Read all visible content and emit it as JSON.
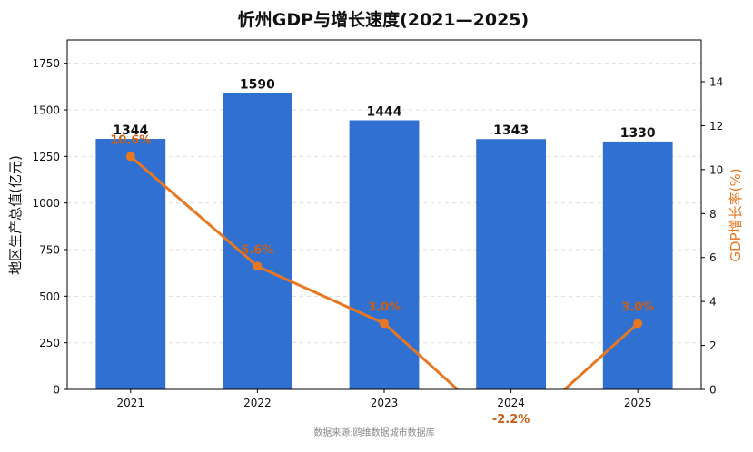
{
  "chart_data": {
    "type": "bar+line",
    "title": "忻州GDP与增长速度(2021—2025)",
    "categories": [
      "2021",
      "2022",
      "2023",
      "2024",
      "2025"
    ],
    "bar_series": {
      "values": [
        1344,
        1590,
        1444,
        1343,
        1330
      ],
      "labels": [
        "1344",
        "1590",
        "1444",
        "1343",
        "1330"
      ],
      "color": "#3070d0",
      "axis": "left"
    },
    "line_series": {
      "values": [
        10.6,
        5.6,
        3.0,
        -2.2,
        3.0
      ],
      "labels": [
        "10.6%",
        "5.6%",
        "3.0%",
        "-2.2%",
        "3.0%"
      ],
      "color": "#e87722",
      "axis": "right"
    },
    "y_left": {
      "label": "地区生产总值(亿元)",
      "lim": [
        0,
        1875
      ],
      "ticks": [
        0,
        250,
        500,
        750,
        1000,
        1250,
        1500,
        1750
      ],
      "tick_labels": [
        "0",
        "250",
        "500",
        "750",
        "1000",
        "1250",
        "1500",
        "1750"
      ]
    },
    "y_right": {
      "label": "GDP增长率(%)",
      "lim": [
        0,
        15.9
      ],
      "ticks": [
        0,
        2,
        4,
        6,
        8,
        10,
        12,
        14
      ],
      "tick_labels": [
        "0",
        "2",
        "4",
        "6",
        "8",
        "10",
        "12",
        "14"
      ]
    },
    "grid": "horizontal-dashed",
    "source": "数据来源:鸥维数据城市数据库"
  }
}
